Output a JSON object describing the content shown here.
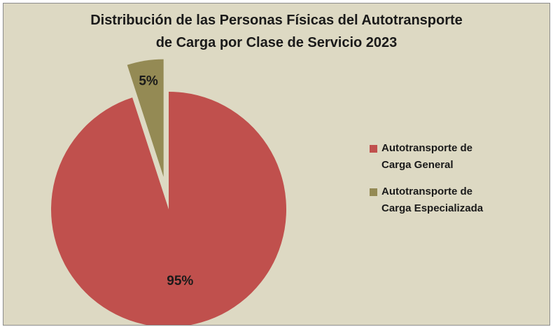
{
  "chart_data": {
    "type": "pie",
    "title": [
      "Distribución de las Personas Físicas del Autotransporte",
      "de Carga por Clase de Servicio 2023"
    ],
    "categories": [
      "Autotransporte de Carga General",
      "Autotransporte de Carga Especializada"
    ],
    "values": [
      95,
      5
    ],
    "value_labels": [
      "95%",
      "5%"
    ],
    "colors": [
      "#c0504d",
      "#948a54"
    ],
    "exploded": [
      false,
      true
    ],
    "legend": "right"
  }
}
